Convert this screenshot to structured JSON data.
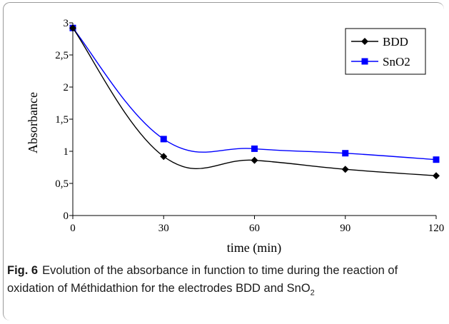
{
  "chart_data": {
    "type": "line",
    "xlabel": "time (min)",
    "ylabel": "Absorbance",
    "x_ticks": [
      "0",
      "30",
      "60",
      "90",
      "120"
    ],
    "y_ticks": [
      "0",
      "0,5",
      "1",
      "1,5",
      "2",
      "2,5",
      "3"
    ],
    "xlim": [
      0,
      120
    ],
    "ylim": [
      0,
      3
    ],
    "legend_position": "top-right",
    "series": [
      {
        "name": "BDD",
        "color": "#000000",
        "marker": "diamond",
        "x": [
          0,
          30,
          60,
          90,
          120
        ],
        "y": [
          2.92,
          0.92,
          0.86,
          0.72,
          0.62
        ]
      },
      {
        "name": "SnO2",
        "color": "#0000ff",
        "marker": "square",
        "x": [
          0,
          30,
          60,
          90,
          120
        ],
        "y": [
          2.92,
          1.19,
          1.04,
          0.97,
          0.87
        ]
      }
    ]
  },
  "caption": {
    "label": "Fig. 6",
    "text": "Evolution of the absorbance in function to time during the reaction of oxidation of Méthidathion for the electrodes BDD and SnO",
    "subscript": "2"
  }
}
